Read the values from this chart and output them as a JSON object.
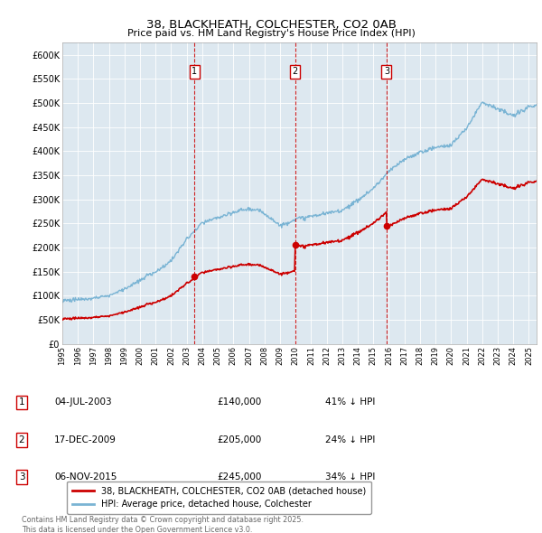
{
  "title": "38, BLACKHEATH, COLCHESTER, CO2 0AB",
  "subtitle": "Price paid vs. HM Land Registry's House Price Index (HPI)",
  "background_color": "#dde8f0",
  "ylim": [
    0,
    625000
  ],
  "yticks": [
    0,
    50000,
    100000,
    150000,
    200000,
    250000,
    300000,
    350000,
    400000,
    450000,
    500000,
    550000,
    600000
  ],
  "ytick_labels": [
    "£0",
    "£50K",
    "£100K",
    "£150K",
    "£200K",
    "£250K",
    "£300K",
    "£350K",
    "£400K",
    "£450K",
    "£500K",
    "£550K",
    "£600K"
  ],
  "hpi_color": "#7ab4d4",
  "price_color": "#cc0000",
  "vline_color": "#cc0000",
  "legend_label_price": "38, BLACKHEATH, COLCHESTER, CO2 0AB (detached house)",
  "legend_label_hpi": "HPI: Average price, detached house, Colchester",
  "transactions": [
    {
      "num": 1,
      "date_x": 2003.5,
      "price": 140000,
      "label": "04-JUL-2003",
      "amount": "£140,000",
      "pct": "41% ↓ HPI"
    },
    {
      "num": 2,
      "date_x": 2009.96,
      "price": 205000,
      "label": "17-DEC-2009",
      "amount": "£205,000",
      "pct": "24% ↓ HPI"
    },
    {
      "num": 3,
      "date_x": 2015.85,
      "price": 245000,
      "label": "06-NOV-2015",
      "amount": "£245,000",
      "pct": "34% ↓ HPI"
    }
  ],
  "footer": "Contains HM Land Registry data © Crown copyright and database right 2025.\nThis data is licensed under the Open Government Licence v3.0.",
  "xlim_start": 1995.0,
  "xlim_end": 2025.5,
  "xtick_years": [
    1995,
    1996,
    1997,
    1998,
    1999,
    2000,
    2001,
    2002,
    2003,
    2004,
    2005,
    2006,
    2007,
    2008,
    2009,
    2010,
    2011,
    2012,
    2013,
    2014,
    2015,
    2016,
    2017,
    2018,
    2019,
    2020,
    2021,
    2022,
    2023,
    2024,
    2025
  ],
  "hpi_anchors_x": [
    1995,
    1996,
    1997,
    1998,
    1999,
    2000,
    2001,
    2002,
    2003,
    2004,
    2005,
    2006,
    2007,
    2008,
    2009,
    2010,
    2011,
    2012,
    2013,
    2014,
    2015,
    2016,
    2017,
    2018,
    2019,
    2020,
    2021,
    2022,
    2023,
    2024,
    2025
  ],
  "hpi_anchors_y": [
    90000,
    93000,
    97000,
    103000,
    115000,
    130000,
    152000,
    175000,
    220000,
    255000,
    265000,
    275000,
    285000,
    275000,
    250000,
    265000,
    272000,
    278000,
    285000,
    305000,
    330000,
    365000,
    390000,
    405000,
    415000,
    420000,
    455000,
    510000,
    495000,
    480000,
    500000
  ]
}
